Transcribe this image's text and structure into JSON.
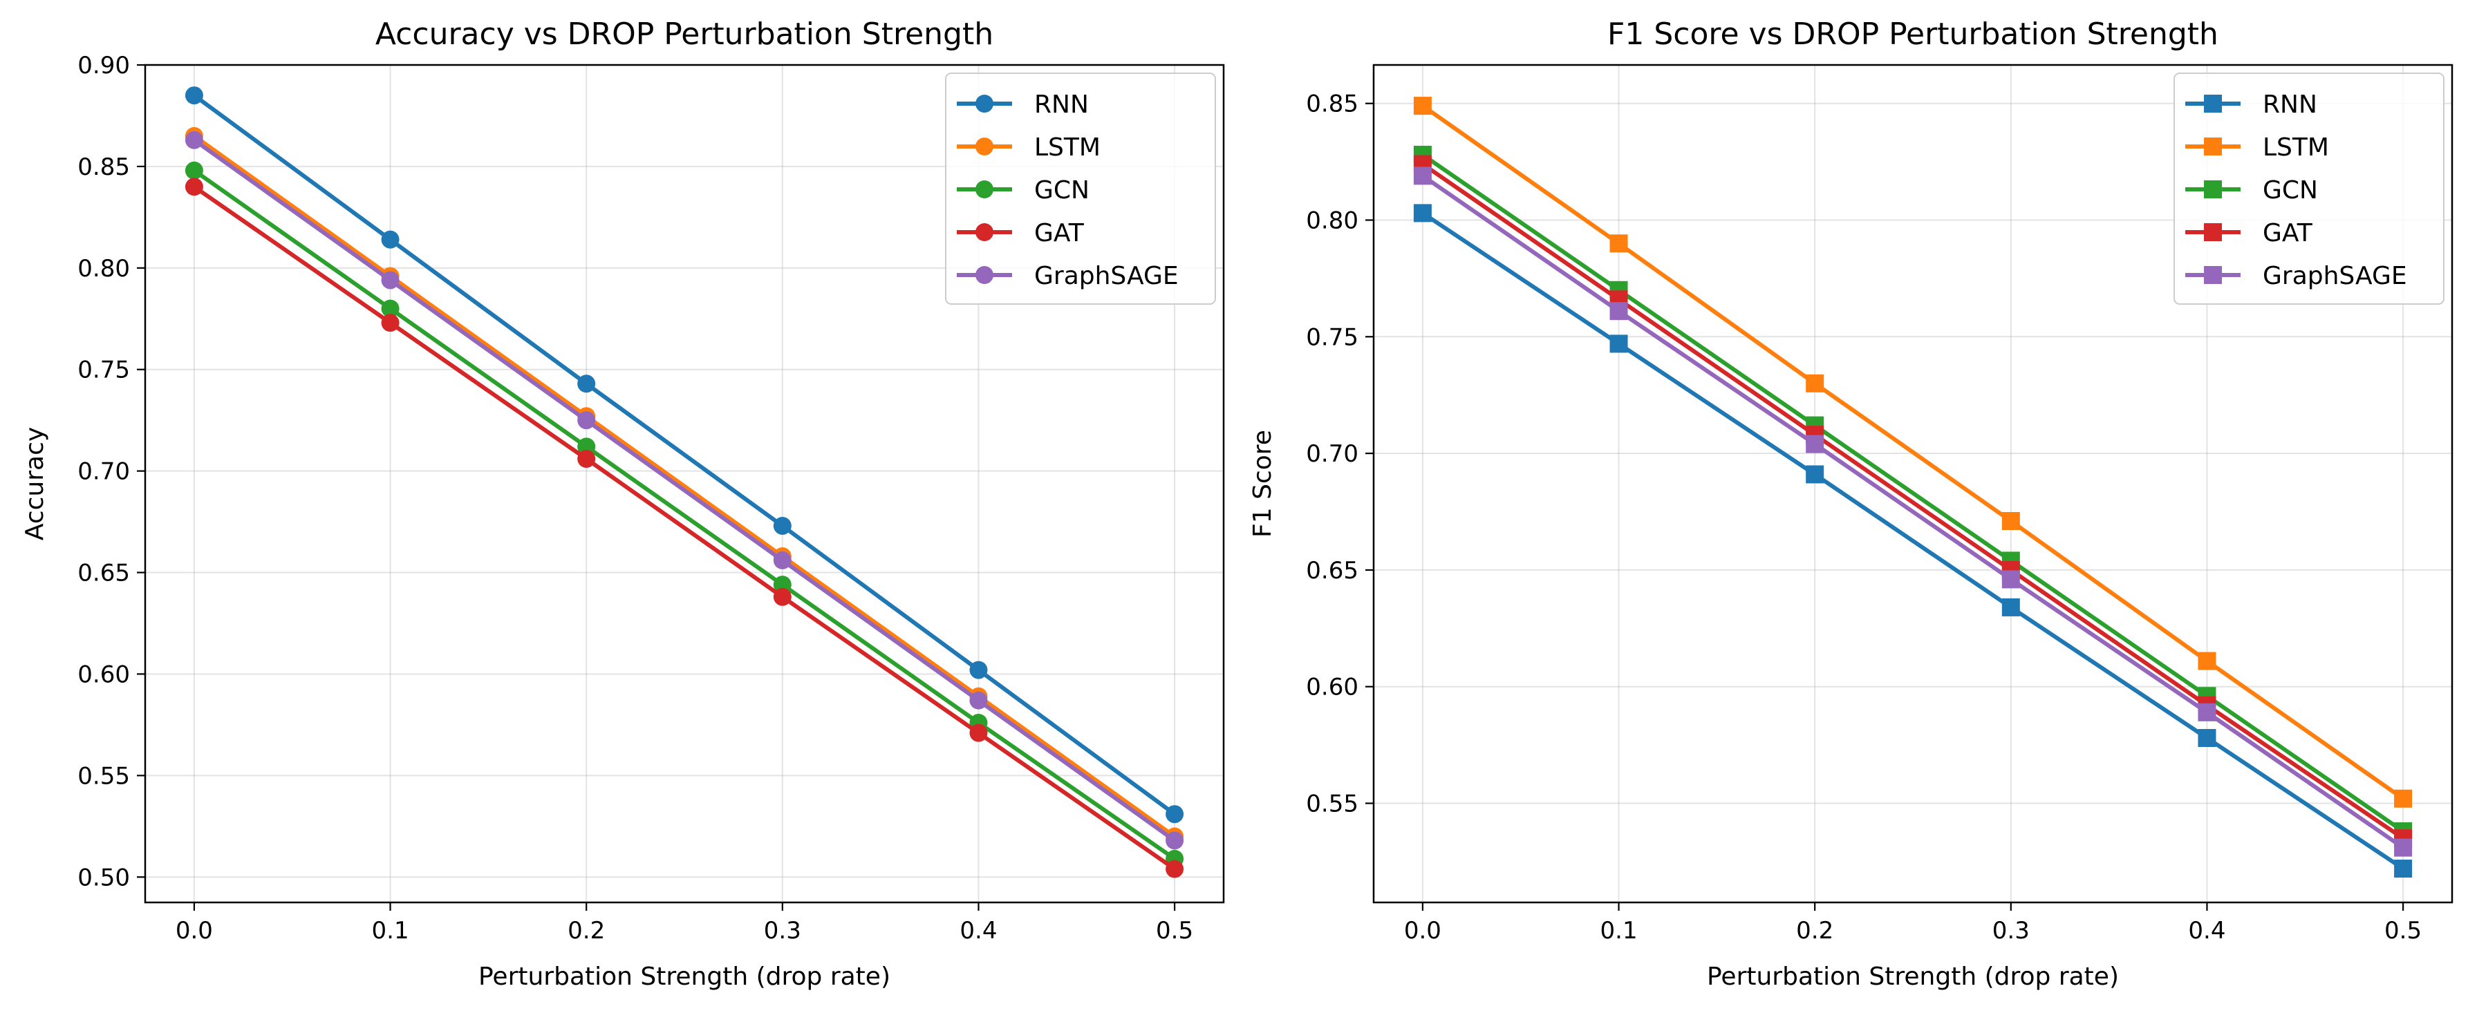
{
  "colors": {
    "RNN": "#1f77b4",
    "LSTM": "#ff7f0e",
    "GCN": "#2ca02c",
    "GAT": "#d62728",
    "GraphSAGE": "#9467bd"
  },
  "chart_data": [
    {
      "type": "line",
      "title": "Accuracy vs DROP Perturbation Strength",
      "xlabel": "Perturbation Strength (drop rate)",
      "ylabel": "Accuracy",
      "marker": "circle",
      "x": [
        0.0,
        0.1,
        0.2,
        0.3,
        0.4,
        0.5
      ],
      "x_ticks": [
        "0.0",
        "0.1",
        "0.2",
        "0.3",
        "0.4",
        "0.5"
      ],
      "xlim": [
        -0.025,
        0.525
      ],
      "ylim": [
        0.4875,
        0.9
      ],
      "y_ticks": [
        "0.50",
        "0.55",
        "0.60",
        "0.65",
        "0.70",
        "0.75",
        "0.80",
        "0.85",
        "0.90"
      ],
      "grid": true,
      "legend_position": "top-right",
      "series": [
        {
          "name": "RNN",
          "values": [
            0.885,
            0.814,
            0.743,
            0.673,
            0.602,
            0.531
          ]
        },
        {
          "name": "LSTM",
          "values": [
            0.865,
            0.796,
            0.727,
            0.658,
            0.589,
            0.52
          ]
        },
        {
          "name": "GCN",
          "values": [
            0.848,
            0.78,
            0.712,
            0.644,
            0.576,
            0.509
          ]
        },
        {
          "name": "GAT",
          "values": [
            0.84,
            0.773,
            0.706,
            0.638,
            0.571,
            0.504
          ]
        },
        {
          "name": "GraphSAGE",
          "values": [
            0.863,
            0.794,
            0.725,
            0.656,
            0.587,
            0.518
          ]
        }
      ]
    },
    {
      "type": "line",
      "title": "F1 Score vs DROP Perturbation Strength",
      "xlabel": "Perturbation Strength (drop rate)",
      "ylabel": "F1 Score",
      "marker": "square",
      "x": [
        0.0,
        0.1,
        0.2,
        0.3,
        0.4,
        0.5
      ],
      "x_ticks": [
        "0.0",
        "0.1",
        "0.2",
        "0.3",
        "0.4",
        "0.5"
      ],
      "xlim": [
        -0.025,
        0.525
      ],
      "ylim": [
        0.5075,
        0.8665
      ],
      "y_ticks": [
        "0.55",
        "0.60",
        "0.65",
        "0.70",
        "0.75",
        "0.80",
        "0.85"
      ],
      "grid": true,
      "legend_position": "top-right",
      "series": [
        {
          "name": "RNN",
          "values": [
            0.803,
            0.747,
            0.691,
            0.634,
            0.578,
            0.522
          ]
        },
        {
          "name": "LSTM",
          "values": [
            0.849,
            0.79,
            0.73,
            0.671,
            0.611,
            0.552
          ]
        },
        {
          "name": "GCN",
          "values": [
            0.828,
            0.77,
            0.712,
            0.654,
            0.596,
            0.538
          ]
        },
        {
          "name": "GAT",
          "values": [
            0.824,
            0.766,
            0.708,
            0.65,
            0.592,
            0.535
          ]
        },
        {
          "name": "GraphSAGE",
          "values": [
            0.819,
            0.761,
            0.704,
            0.646,
            0.589,
            0.531
          ]
        }
      ]
    }
  ]
}
